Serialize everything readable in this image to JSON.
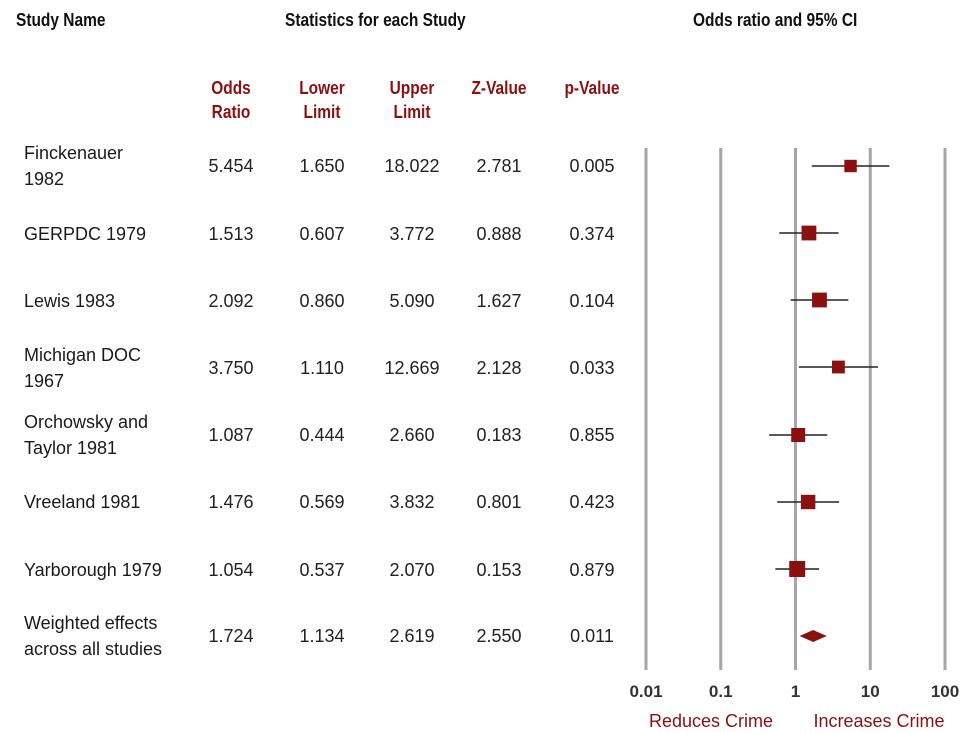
{
  "headers": {
    "study_name": "Study Name",
    "statistics": "Statistics for each Study",
    "plot_title": "Odds ratio and 95% CI"
  },
  "columns": {
    "odds_ratio": "Odds\nRatio",
    "lower_limit": "Lower\nLimit",
    "upper_limit": "Upper\nLimit",
    "z_value": "Z-Value",
    "p_value": "p-Value"
  },
  "rows": [
    {
      "name": "Finckenauer\n1982",
      "or": "5.454",
      "lower": "1.650",
      "upper": "18.022",
      "z": "2.781",
      "p": "0.005"
    },
    {
      "name": "GERPDC 1979",
      "or": "1.513",
      "lower": "0.607",
      "upper": "3.772",
      "z": "0.888",
      "p": "0.374"
    },
    {
      "name": "Lewis 1983",
      "or": "2.092",
      "lower": "0.860",
      "upper": "5.090",
      "z": "1.627",
      "p": "0.104"
    },
    {
      "name": "Michigan DOC\n1967",
      "or": "3.750",
      "lower": "1.110",
      "upper": "12.669",
      "z": "2.128",
      "p": "0.033"
    },
    {
      "name": "Orchowsky and\nTaylor 1981",
      "or": "1.087",
      "lower": "0.444",
      "upper": "2.660",
      "z": "0.183",
      "p": "0.855"
    },
    {
      "name": "Vreeland 1981",
      "or": "1.476",
      "lower": "0.569",
      "upper": "3.832",
      "z": "0.801",
      "p": "0.423"
    },
    {
      "name": "Yarborough 1979",
      "or": "1.054",
      "lower": "0.537",
      "upper": "2.070",
      "z": "0.153",
      "p": "0.879"
    },
    {
      "name": "Weighted effects\nacross all studies",
      "or": "1.724",
      "lower": "1.134",
      "upper": "2.619",
      "z": "2.550",
      "p": "0.011"
    }
  ],
  "chart_data": {
    "type": "forest",
    "title": "Odds ratio and 95% CI",
    "x_scale": "log",
    "xlim": [
      0.01,
      100
    ],
    "x_ticks": [
      "0.01",
      "0.1",
      "1",
      "10",
      "100"
    ],
    "x_tick_values": [
      0.01,
      0.1,
      1,
      10,
      100
    ],
    "left_label": "Reduces Crime",
    "right_label": "Increases Crime",
    "grid": true,
    "marker_color": "#8b1010",
    "studies": [
      {
        "name": "Finckenauer 1982",
        "or": 5.454,
        "lower": 1.65,
        "upper": 18.022,
        "weight": 0.55
      },
      {
        "name": "GERPDC 1979",
        "or": 1.513,
        "lower": 0.607,
        "upper": 3.772,
        "weight": 0.85
      },
      {
        "name": "Lewis 1983",
        "or": 2.092,
        "lower": 0.86,
        "upper": 5.09,
        "weight": 0.85
      },
      {
        "name": "Michigan DOC 1967",
        "or": 3.75,
        "lower": 1.11,
        "upper": 12.669,
        "weight": 0.6
      },
      {
        "name": "Orchowsky and Taylor 1981",
        "or": 1.087,
        "lower": 0.444,
        "upper": 2.66,
        "weight": 0.75
      },
      {
        "name": "Vreeland 1981",
        "or": 1.476,
        "lower": 0.569,
        "upper": 3.832,
        "weight": 0.8
      },
      {
        "name": "Yarborough 1979",
        "or": 1.054,
        "lower": 0.537,
        "upper": 2.07,
        "weight": 1.0
      }
    ],
    "summary": {
      "name": "Weighted effects across all studies",
      "or": 1.724,
      "lower": 1.134,
      "upper": 2.619
    }
  }
}
